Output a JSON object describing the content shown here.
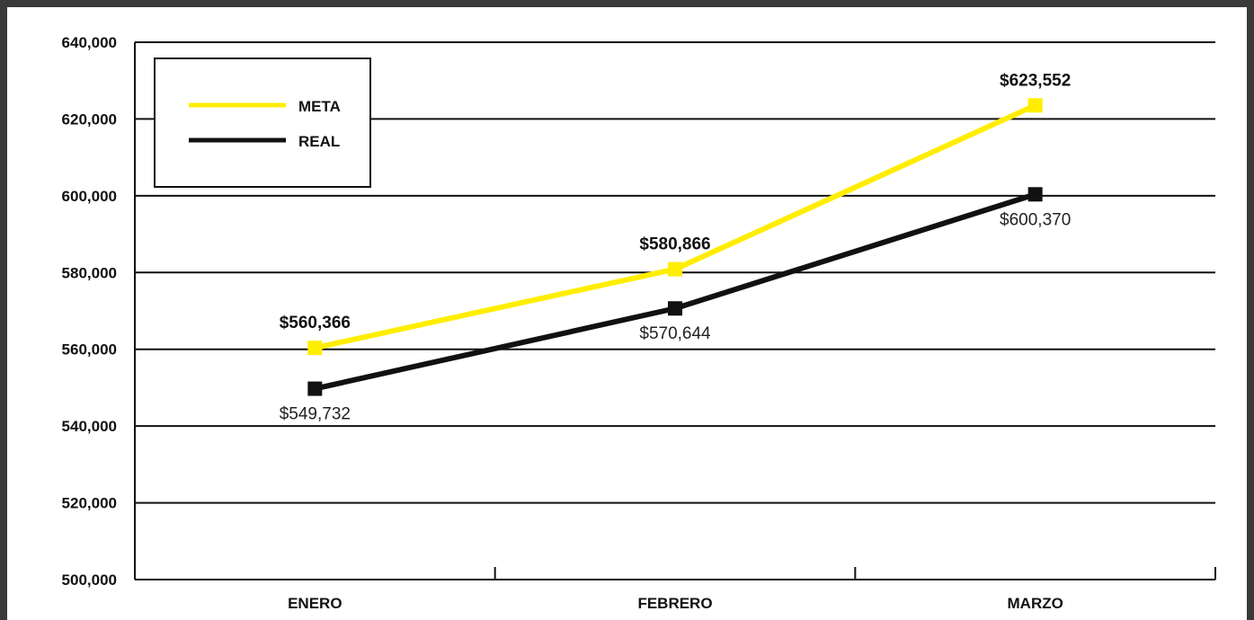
{
  "chart_data": {
    "type": "line",
    "categories": [
      "ENERO",
      "FEBRERO",
      "MARZO"
    ],
    "ylim": [
      500000,
      640000
    ],
    "ytick_labels": [
      "500,000",
      "520,000",
      "540,000",
      "560,000",
      "580,000",
      "600,000",
      "620,000",
      "640,000"
    ],
    "grid": true,
    "legend_position": "top-left",
    "series": [
      {
        "name": "META",
        "color": "#ffee00",
        "values": [
          560366,
          580866,
          623552
        ],
        "data_labels": [
          "$560,366",
          "$580,866",
          "$623,552"
        ]
      },
      {
        "name": "REAL",
        "color": "#111111",
        "values": [
          549732,
          570644,
          600370
        ],
        "data_labels": [
          "$549,732",
          "$570,644",
          "$600,370"
        ]
      }
    ]
  }
}
